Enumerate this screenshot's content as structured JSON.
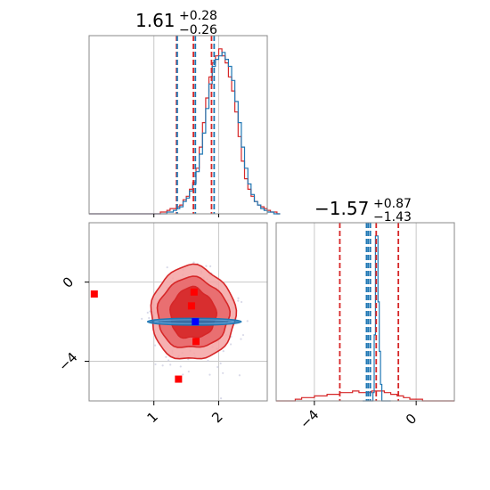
{
  "chart_data": [
    {
      "type": "histogram",
      "panel": "marginal-x",
      "title": {
        "median": "1.61",
        "plus": "+0.28",
        "minus": "−0.26"
      },
      "xlim": [
        0.0,
        2.75
      ],
      "grid": true,
      "colors": {
        "series_a": "#d62728",
        "series_b": "#1f77b4"
      },
      "series": [
        {
          "color": "#d62728",
          "bin_start": 0.0,
          "bin_width": 0.05,
          "counts": [
            0,
            0,
            0,
            0,
            0,
            0,
            0,
            0,
            0,
            0,
            0,
            0,
            0,
            0,
            0,
            0,
            0,
            0,
            0,
            0,
            0,
            0,
            1,
            1,
            2,
            3,
            3,
            4,
            5,
            8,
            10,
            14,
            18,
            26,
            38,
            52,
            66,
            78,
            86,
            90,
            94,
            90,
            86,
            78,
            70,
            58,
            44,
            30,
            20,
            14,
            10,
            7,
            5,
            4,
            3,
            2,
            1,
            1,
            0
          ]
        },
        {
          "color": "#1f77b4",
          "bin_start": 0.0,
          "bin_width": 0.05,
          "counts": [
            0,
            0,
            0,
            0,
            0,
            0,
            0,
            0,
            0,
            0,
            0,
            0,
            0,
            0,
            0,
            0,
            0,
            0,
            0,
            0,
            0,
            0,
            0,
            0,
            1,
            1,
            2,
            3,
            4,
            7,
            9,
            13,
            17,
            24,
            34,
            46,
            60,
            74,
            84,
            88,
            90,
            92,
            88,
            84,
            76,
            64,
            52,
            38,
            26,
            17,
            11,
            7,
            5,
            3,
            2,
            1,
            1,
            0,
            0
          ]
        }
      ],
      "vlines": [
        {
          "x": 1.35,
          "color": "#d62728"
        },
        {
          "x": 1.61,
          "color": "#d62728"
        },
        {
          "x": 1.89,
          "color": "#d62728"
        },
        {
          "x": 1.36,
          "color": "#1f77b4"
        },
        {
          "x": 1.64,
          "color": "#1f77b4"
        },
        {
          "x": 1.93,
          "color": "#1f77b4"
        }
      ]
    },
    {
      "type": "scatter",
      "panel": "joint",
      "xlim": [
        0.0,
        2.75
      ],
      "ylim": [
        -6.0,
        3.0
      ],
      "x_ticks": [
        "1",
        "2"
      ],
      "x_tick_values": [
        1,
        2
      ],
      "y_ticks": [
        "0",
        "−4"
      ],
      "y_tick_values": [
        0,
        -4
      ],
      "grid": true,
      "red_points": [
        [
          0.08,
          -0.6
        ],
        [
          1.62,
          -0.5
        ],
        [
          1.58,
          -1.2
        ],
        [
          1.65,
          -3.0
        ],
        [
          1.38,
          -4.9
        ]
      ],
      "blue_point": [
        1.64,
        -2.0
      ],
      "contours": [
        {
          "level": "outer",
          "color": "#f4a3a3",
          "rx": 0.65,
          "ry": 2.5
        },
        {
          "level": "middle",
          "color": "#e8686a",
          "rx": 0.55,
          "ry": 1.9
        },
        {
          "level": "inner",
          "color": "#d62728",
          "rx": 0.35,
          "ry": 1.4
        }
      ],
      "blue_band": {
        "x_range": [
          0.9,
          2.35
        ],
        "y": -2.0,
        "color": "#1f77b4"
      },
      "contour_center": [
        1.6,
        -1.7
      ]
    },
    {
      "type": "histogram",
      "panel": "marginal-y",
      "title": {
        "median": "−1.57",
        "plus": "+0.87",
        "minus": "−1.43"
      },
      "xlim": [
        -5.5,
        1.5
      ],
      "x_ticks": [
        "−4",
        "0"
      ],
      "x_tick_values": [
        -4,
        0
      ],
      "grid": true,
      "series": [
        {
          "color": "#d62728",
          "bin_start": -5.5,
          "bin_width": 0.25,
          "counts": [
            0,
            0,
            0,
            1,
            2,
            2,
            3,
            3,
            4,
            4,
            5,
            5,
            6,
            5,
            5,
            6,
            6,
            5,
            4,
            3,
            2,
            1,
            1,
            0,
            0,
            0,
            0,
            0
          ]
        },
        {
          "color": "#1f77b4",
          "bin_start": -2.1,
          "bin_width": 0.05,
          "counts": [
            0,
            0,
            0,
            0,
            0,
            0,
            0,
            0,
            5,
            40,
            100,
            100,
            60,
            30,
            10,
            0,
            0,
            0,
            0,
            0,
            0,
            0
          ]
        }
      ],
      "vlines": [
        {
          "x": -3.0,
          "color": "#d62728"
        },
        {
          "x": -1.57,
          "color": "#d62728"
        },
        {
          "x": -0.7,
          "color": "#d62728"
        },
        {
          "x": -1.95,
          "color": "#1f77b4"
        },
        {
          "x": -1.88,
          "color": "#1f77b4"
        },
        {
          "x": -1.8,
          "color": "#1f77b4"
        }
      ]
    }
  ]
}
